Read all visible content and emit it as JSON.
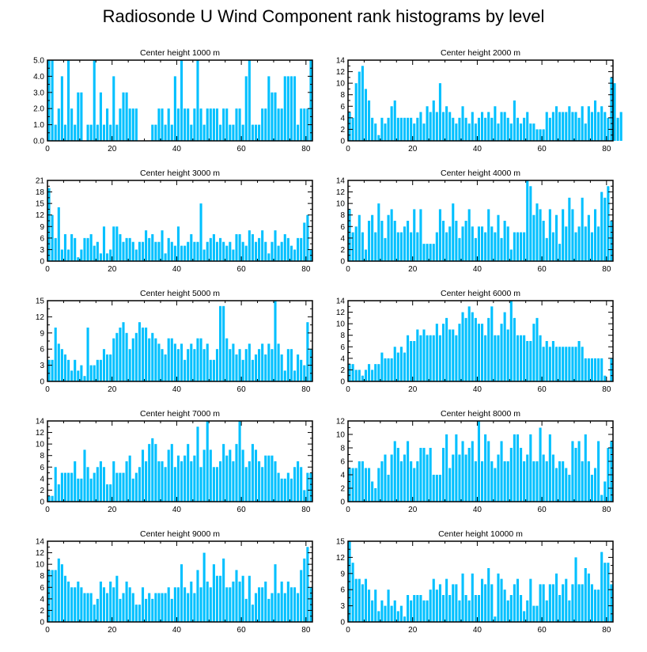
{
  "title": "Radiosonde U Wind Component rank histograms by level",
  "colors": {
    "bar": "#00C0FF",
    "axis": "#000000"
  },
  "chart_data": [
    {
      "type": "bar",
      "title": "Center height 1000 m",
      "ylim": [
        0,
        5
      ],
      "yticks": [
        0.0,
        1.0,
        2.0,
        3.0,
        4.0,
        5.0
      ],
      "ytick_labels": [
        "0.0",
        "1.0",
        "2.0",
        "3.0",
        "4.0",
        "5.0"
      ],
      "xlim": [
        0,
        82
      ],
      "xticks": [
        0,
        20,
        40,
        60,
        80
      ],
      "xtick_labels": [
        "0",
        "20",
        "40",
        "60",
        "80"
      ],
      "values": [
        5,
        5,
        1,
        2,
        4,
        1,
        5,
        2,
        1,
        3,
        3,
        0,
        1,
        1,
        5,
        1,
        3,
        1,
        2,
        1,
        4,
        1,
        2,
        3,
        3,
        2,
        2,
        2,
        0,
        0,
        0,
        0,
        1,
        1,
        2,
        2,
        1,
        2,
        1,
        4,
        2,
        5,
        2,
        2,
        1,
        2,
        5,
        2,
        1,
        2,
        2,
        2,
        2,
        1,
        2,
        2,
        1,
        1,
        2,
        2,
        1,
        4,
        5,
        1,
        1,
        1,
        2,
        2,
        4,
        3,
        3,
        2,
        2,
        4,
        4,
        4,
        4,
        1,
        2,
        2,
        2,
        5
      ]
    },
    {
      "type": "bar",
      "title": "Center height 2000 m",
      "ylim": [
        0,
        14
      ],
      "yticks": [
        0,
        2,
        4,
        6,
        8,
        10,
        12,
        14
      ],
      "ytick_labels": [
        "0",
        "2",
        "4",
        "6",
        "8",
        "10",
        "12",
        "14"
      ],
      "xlim": [
        0,
        82
      ],
      "xticks": [
        0,
        20,
        40,
        60,
        80
      ],
      "xtick_labels": [
        "0",
        "20",
        "40",
        "60",
        "80"
      ],
      "values": [
        5,
        4,
        10,
        12,
        13,
        9,
        7,
        4,
        3,
        1,
        4,
        3,
        4,
        6,
        7,
        4,
        4,
        4,
        4,
        4,
        3,
        4,
        5,
        3,
        6,
        5,
        7,
        5,
        10,
        5,
        6,
        5,
        4,
        3,
        4,
        6,
        4,
        3,
        5,
        3,
        4,
        5,
        4,
        5,
        4,
        6,
        3,
        5,
        5,
        4,
        3,
        7,
        4,
        3,
        4,
        5,
        3,
        3,
        2,
        2,
        2,
        5,
        4,
        5,
        6,
        5,
        5,
        5,
        6,
        5,
        5,
        4,
        6,
        3,
        6,
        5,
        7,
        5,
        6,
        5,
        4,
        11,
        10,
        4,
        5
      ]
    },
    {
      "type": "bar",
      "title": "Center height 3000 m",
      "ylim": [
        0,
        21
      ],
      "yticks": [
        0,
        3,
        6,
        9,
        12,
        15,
        18,
        21
      ],
      "ytick_labels": [
        "0",
        "3",
        "6",
        "9",
        "12",
        "15",
        "18",
        "21"
      ],
      "xlim": [
        0,
        82
      ],
      "xticks": [
        0,
        20,
        40,
        60,
        80
      ],
      "xtick_labels": [
        "0",
        "20",
        "40",
        "60",
        "80"
      ],
      "values": [
        19,
        12,
        6,
        14,
        3,
        7,
        3,
        7,
        6,
        1,
        3,
        6,
        6,
        7,
        4,
        5,
        2,
        9,
        2,
        3,
        9,
        9,
        7,
        5,
        6,
        6,
        5,
        3,
        5,
        5,
        8,
        6,
        7,
        5,
        5,
        8,
        2,
        6,
        5,
        4,
        9,
        4,
        4,
        5,
        7,
        5,
        5,
        15,
        3,
        5,
        6,
        7,
        5,
        6,
        5,
        4,
        5,
        3,
        7,
        7,
        5,
        4,
        8,
        7,
        5,
        6,
        8,
        5,
        2,
        5,
        8,
        4,
        5,
        7,
        6,
        4,
        3,
        6,
        6,
        10,
        12,
        3
      ]
    },
    {
      "type": "bar",
      "title": "Center height 4000 m",
      "ylim": [
        0,
        14
      ],
      "yticks": [
        0,
        2,
        4,
        6,
        8,
        10,
        12,
        14
      ],
      "ytick_labels": [
        "0",
        "2",
        "4",
        "6",
        "8",
        "10",
        "12",
        "14"
      ],
      "xlim": [
        0,
        82
      ],
      "xticks": [
        0,
        20,
        40,
        60,
        80
      ],
      "xtick_labels": [
        "0",
        "20",
        "40",
        "60",
        "80"
      ],
      "values": [
        9,
        5,
        6,
        8,
        5,
        2,
        7,
        8,
        5,
        10,
        7,
        4,
        8,
        9,
        7,
        5,
        5,
        6,
        7,
        5,
        9,
        5,
        9,
        3,
        3,
        3,
        3,
        5,
        9,
        7,
        5,
        6,
        10,
        7,
        4,
        6,
        7,
        9,
        6,
        4,
        6,
        6,
        5,
        9,
        6,
        5,
        8,
        4,
        7,
        6,
        2,
        5,
        5,
        5,
        5,
        14,
        13,
        8,
        10,
        9,
        7,
        4,
        9,
        5,
        8,
        3,
        9,
        6,
        11,
        9,
        5,
        6,
        11,
        6,
        8,
        5,
        9,
        6,
        12,
        11,
        13,
        7
      ]
    },
    {
      "type": "bar",
      "title": "Center height 5000 m",
      "ylim": [
        0,
        15
      ],
      "yticks": [
        0,
        3,
        6,
        9,
        12,
        15
      ],
      "ytick_labels": [
        "0",
        "3",
        "6",
        "9",
        "12",
        "15"
      ],
      "xlim": [
        0,
        82
      ],
      "xticks": [
        0,
        20,
        40,
        60,
        80
      ],
      "xtick_labels": [
        "0",
        "20",
        "40",
        "60",
        "80"
      ],
      "values": [
        4,
        4,
        10,
        7,
        6,
        5,
        4,
        2,
        4,
        2,
        3,
        1,
        10,
        3,
        3,
        4,
        4,
        6,
        5,
        5,
        8,
        9,
        10,
        11,
        9,
        6,
        8,
        9,
        11,
        10,
        10,
        8,
        9,
        8,
        7,
        6,
        5,
        8,
        8,
        7,
        6,
        7,
        4,
        6,
        7,
        6,
        8,
        8,
        6,
        7,
        4,
        4,
        6,
        14,
        14,
        8,
        6,
        7,
        5,
        6,
        4,
        6,
        7,
        4,
        5,
        6,
        7,
        5,
        7,
        6,
        15,
        7,
        5,
        2,
        6,
        6,
        2,
        5,
        4,
        3,
        11,
        6
      ]
    },
    {
      "type": "bar",
      "title": "Center height 6000 m",
      "ylim": [
        0,
        14
      ],
      "yticks": [
        0,
        2,
        4,
        6,
        8,
        10,
        12,
        14
      ],
      "ytick_labels": [
        "0",
        "2",
        "4",
        "6",
        "8",
        "10",
        "12",
        "14"
      ],
      "xlim": [
        0,
        82
      ],
      "xticks": [
        0,
        20,
        40,
        60,
        80
      ],
      "xtick_labels": [
        "0",
        "20",
        "40",
        "60",
        "80"
      ],
      "values": [
        3,
        3,
        2,
        2,
        1,
        2,
        3,
        2,
        3,
        3,
        5,
        4,
        4,
        4,
        6,
        5,
        6,
        5,
        8,
        7,
        7,
        9,
        8,
        9,
        8,
        8,
        8,
        10,
        8,
        10,
        11,
        9,
        9,
        8,
        10,
        12,
        11,
        13,
        12,
        11,
        10,
        10,
        8,
        11,
        13,
        8,
        8,
        10,
        12,
        9,
        14,
        11,
        8,
        8,
        8,
        7,
        7,
        10,
        11,
        8,
        6,
        7,
        6,
        7,
        6,
        6,
        6,
        6,
        6,
        6,
        6,
        7,
        6,
        4,
        4,
        4,
        4,
        4,
        4,
        1,
        0,
        4
      ]
    },
    {
      "type": "bar",
      "title": "Center height 7000 m",
      "ylim": [
        0,
        14
      ],
      "yticks": [
        0,
        2,
        4,
        6,
        8,
        10,
        12,
        14
      ],
      "ytick_labels": [
        "0",
        "2",
        "4",
        "6",
        "8",
        "10",
        "12",
        "14"
      ],
      "xlim": [
        0,
        82
      ],
      "xticks": [
        0,
        20,
        40,
        60,
        80
      ],
      "xtick_labels": [
        "0",
        "20",
        "40",
        "60",
        "80"
      ],
      "values": [
        1,
        1,
        6,
        3,
        5,
        5,
        5,
        5,
        7,
        4,
        4,
        9,
        6,
        4,
        5,
        6,
        7,
        6,
        3,
        3,
        7,
        5,
        5,
        5,
        7,
        8,
        4,
        5,
        6,
        9,
        7,
        10,
        11,
        10,
        7,
        7,
        6,
        9,
        10,
        6,
        8,
        7,
        8,
        10,
        7,
        8,
        13,
        6,
        9,
        14,
        9,
        6,
        6,
        7,
        10,
        8,
        9,
        7,
        10,
        14,
        9,
        6,
        7,
        10,
        9,
        7,
        6,
        8,
        8,
        8,
        7,
        5,
        4,
        4,
        5,
        4,
        6,
        7,
        6,
        2,
        5,
        5
      ]
    },
    {
      "type": "bar",
      "title": "Center height 8000 m",
      "ylim": [
        0,
        12
      ],
      "yticks": [
        0,
        2,
        4,
        6,
        8,
        10,
        12
      ],
      "ytick_labels": [
        "0",
        "2",
        "4",
        "6",
        "8",
        "10",
        "12"
      ],
      "xlim": [
        0,
        82
      ],
      "xticks": [
        0,
        20,
        40,
        60,
        80
      ],
      "xtick_labels": [
        "0",
        "20",
        "40",
        "60",
        "80"
      ],
      "values": [
        5,
        5,
        5,
        6,
        6,
        5,
        5,
        3,
        2,
        5,
        6,
        7,
        4,
        7,
        9,
        8,
        6,
        7,
        9,
        6,
        5,
        6,
        8,
        8,
        7,
        8,
        4,
        4,
        4,
        8,
        10,
        5,
        7,
        10,
        7,
        9,
        7,
        8,
        9,
        6,
        12,
        6,
        10,
        9,
        6,
        5,
        7,
        9,
        6,
        6,
        8,
        10,
        10,
        8,
        6,
        7,
        10,
        6,
        6,
        11,
        7,
        6,
        10,
        7,
        5,
        6,
        6,
        5,
        4,
        9,
        8,
        9,
        6,
        10,
        6,
        4,
        5,
        9,
        1,
        3,
        8,
        9
      ]
    },
    {
      "type": "bar",
      "title": "Center height 9000 m",
      "ylim": [
        0,
        14
      ],
      "yticks": [
        0,
        2,
        4,
        6,
        8,
        10,
        12,
        14
      ],
      "ytick_labels": [
        "0",
        "2",
        "4",
        "6",
        "8",
        "10",
        "12",
        "14"
      ],
      "xlim": [
        0,
        82
      ],
      "xticks": [
        0,
        20,
        40,
        60,
        80
      ],
      "xtick_labels": [
        "0",
        "20",
        "40",
        "60",
        "80"
      ],
      "values": [
        9,
        9,
        9,
        11,
        10,
        8,
        7,
        6,
        6,
        7,
        6,
        5,
        5,
        5,
        3,
        4,
        7,
        6,
        5,
        7,
        6,
        8,
        4,
        5,
        7,
        6,
        5,
        3,
        3,
        6,
        4,
        5,
        4,
        5,
        5,
        5,
        5,
        6,
        4,
        6,
        6,
        10,
        6,
        5,
        7,
        5,
        9,
        6,
        12,
        7,
        6,
        10,
        8,
        8,
        11,
        6,
        6,
        7,
        9,
        7,
        8,
        4,
        8,
        3,
        5,
        6,
        6,
        7,
        4,
        5,
        10,
        5,
        7,
        5,
        7,
        6,
        6,
        5,
        9,
        11,
        13,
        6
      ]
    },
    {
      "type": "bar",
      "title": "Center height 10000 m",
      "ylim": [
        0,
        15
      ],
      "yticks": [
        0,
        3,
        6,
        9,
        12,
        15
      ],
      "ytick_labels": [
        "0",
        "3",
        "6",
        "9",
        "12",
        "15"
      ],
      "xlim": [
        0,
        82
      ],
      "xticks": [
        0,
        20,
        40,
        60,
        80
      ],
      "xtick_labels": [
        "0",
        "20",
        "40",
        "60",
        "80"
      ],
      "values": [
        15,
        11,
        8,
        8,
        7,
        8,
        6,
        4,
        6,
        2,
        4,
        3,
        6,
        3,
        4,
        2,
        3,
        1,
        5,
        4,
        5,
        5,
        5,
        4,
        4,
        6,
        8,
        6,
        7,
        5,
        8,
        5,
        7,
        7,
        4,
        9,
        5,
        4,
        9,
        5,
        5,
        8,
        7,
        10,
        7,
        1,
        9,
        8,
        6,
        4,
        5,
        7,
        8,
        5,
        2,
        4,
        8,
        3,
        3,
        7,
        7,
        4,
        7,
        7,
        9,
        5,
        7,
        8,
        4,
        7,
        12,
        7,
        7,
        10,
        9,
        7,
        6,
        6,
        13,
        11,
        11,
        7
      ]
    }
  ]
}
